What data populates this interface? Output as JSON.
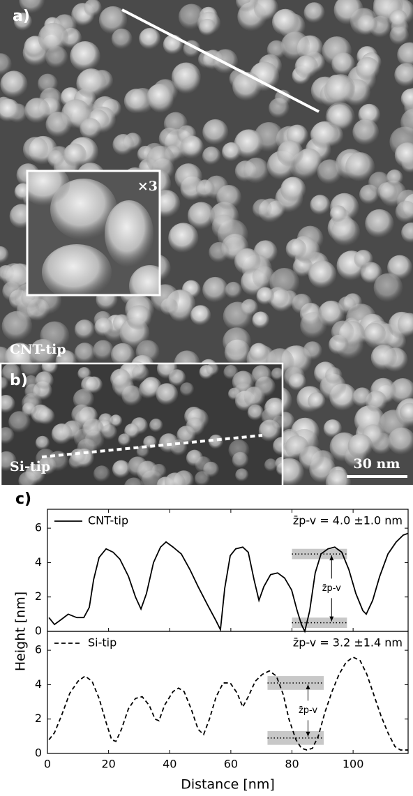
{
  "image_panel": {
    "label_a": "a)",
    "inset_label": "×3",
    "tip_a": "CNT-tip",
    "label_b": "b)",
    "tip_b": "Si-tip",
    "scale_bar": "30 nm"
  },
  "chart_data": [
    {
      "type": "line",
      "panel_label": "c)",
      "y_label": "Height [nm]",
      "xlim": [
        0,
        118
      ],
      "ylim": [
        0,
        7.1
      ],
      "yticks": [
        0,
        2,
        4,
        6
      ],
      "annotation": "z̄p-v = 4.0 ±1.0 nm",
      "arrow_label": "z̄p-v",
      "bands": [
        {
          "x": [
            80,
            98
          ],
          "y": 4.5,
          "range": [
            4.2,
            4.8
          ]
        },
        {
          "x": [
            80,
            98
          ],
          "y": 0.5,
          "range": [
            0.2,
            0.8
          ]
        }
      ],
      "x": [
        0.5,
        2.3,
        4.6,
        6.8,
        9.6,
        11.9,
        13.7,
        15.1,
        16.9,
        19.2,
        21.5,
        23.7,
        26.5,
        28.8,
        30.6,
        32.4,
        34.7,
        37.0,
        38.8,
        41.1,
        43.8,
        46.6,
        49.3,
        52.5,
        55.2,
        56.6,
        58.0,
        59.8,
        61.6,
        63.9,
        65.7,
        67.6,
        69.2,
        70.8,
        73.0,
        75.3,
        77.6,
        79.9,
        81.7,
        83.1,
        84.2,
        85.8,
        87.6,
        89.5,
        91.8,
        94.0,
        96.3,
        98.6,
        100.9,
        103.2,
        104.3,
        106.4,
        108.7,
        111.4,
        114.1,
        116.4,
        118.0
      ],
      "series": [
        {
          "name": "CNT-tip",
          "color": "#000000",
          "dash": "solid",
          "values": [
            0.8,
            0.4,
            0.7,
            1.0,
            0.8,
            0.8,
            1.4,
            3.0,
            4.3,
            4.8,
            4.6,
            4.2,
            3.2,
            2.0,
            1.3,
            2.2,
            4.0,
            4.9,
            5.2,
            4.9,
            4.5,
            3.6,
            2.6,
            1.5,
            0.6,
            0.1,
            2.5,
            4.4,
            4.8,
            4.9,
            4.6,
            3.0,
            1.8,
            2.6,
            3.3,
            3.4,
            3.1,
            2.4,
            1.2,
            0.4,
            0.0,
            1.2,
            3.4,
            4.5,
            4.8,
            4.9,
            4.6,
            3.6,
            2.2,
            1.2,
            1.0,
            1.8,
            3.2,
            4.5,
            5.2,
            5.6,
            5.7
          ]
        }
      ]
    },
    {
      "type": "line",
      "x_label": "Distance [nm]",
      "xlim": [
        0,
        118
      ],
      "ylim": [
        0,
        7.1
      ],
      "xticks": [
        0,
        20,
        40,
        60,
        80,
        100
      ],
      "yticks": [
        0,
        2,
        4,
        6
      ],
      "annotation": "z̄p-v = 3.2 ±1.4 nm",
      "arrow_label": "z̄p-v",
      "bands": [
        {
          "x": [
            72,
            90.4
          ],
          "y": 4.1,
          "range": [
            3.7,
            4.5
          ]
        },
        {
          "x": [
            72,
            90.4
          ],
          "y": 0.9,
          "range": [
            0.5,
            1.3
          ]
        }
      ],
      "x": [
        0.5,
        2.3,
        4.6,
        7.3,
        10.0,
        12.3,
        14.6,
        16.9,
        19.2,
        21.0,
        22.4,
        24.2,
        26.5,
        28.8,
        31.0,
        33.3,
        35.2,
        36.5,
        38.3,
        41.1,
        42.9,
        44.7,
        47.0,
        49.3,
        51.1,
        53.0,
        55.2,
        57.5,
        59.8,
        62.1,
        63.9,
        65.7,
        68.0,
        70.3,
        72.6,
        74.9,
        77.2,
        79.0,
        81.3,
        83.1,
        84.9,
        86.7,
        88.6,
        90.8,
        93.1,
        95.4,
        97.7,
        100.0,
        102.3,
        104.5,
        106.8,
        109.1,
        111.4,
        113.7,
        115.5,
        118.0
      ],
      "series": [
        {
          "name": "Si-tip",
          "color": "#000000",
          "dash": "dashed",
          "values": [
            0.8,
            1.2,
            2.2,
            3.5,
            4.2,
            4.5,
            4.2,
            3.2,
            1.8,
            0.8,
            0.7,
            1.4,
            2.6,
            3.2,
            3.3,
            2.8,
            2.0,
            1.9,
            2.8,
            3.6,
            3.8,
            3.6,
            2.6,
            1.4,
            1.1,
            2.0,
            3.3,
            4.1,
            4.1,
            3.5,
            2.7,
            3.3,
            4.2,
            4.6,
            4.8,
            4.5,
            3.4,
            2.0,
            0.8,
            0.3,
            0.2,
            0.3,
            1.0,
            2.4,
            3.6,
            4.6,
            5.3,
            5.6,
            5.4,
            4.6,
            3.4,
            2.2,
            1.2,
            0.4,
            0.2,
            0.2
          ]
        }
      ]
    }
  ]
}
